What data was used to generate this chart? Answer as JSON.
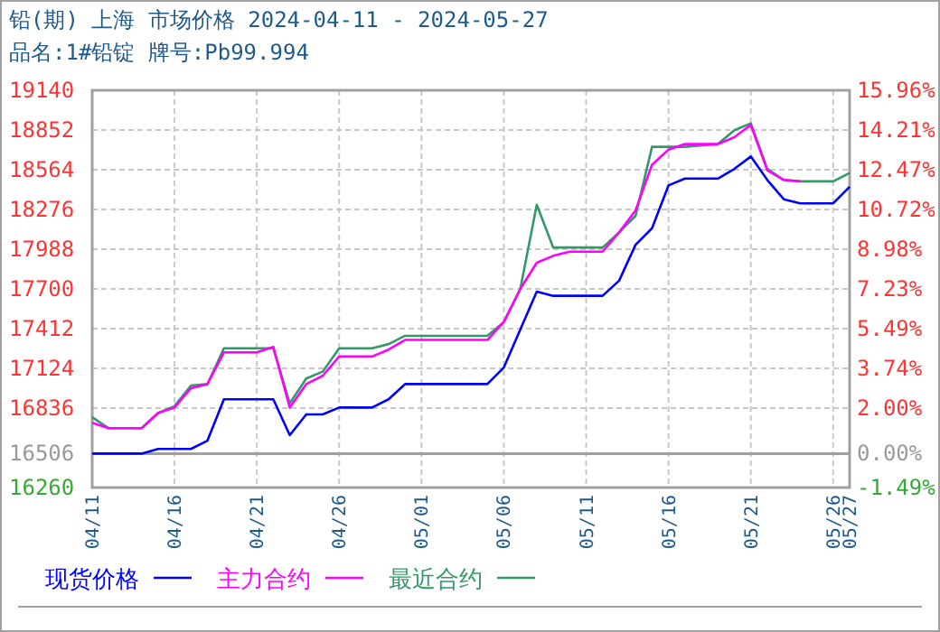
{
  "chart_data": {
    "type": "line",
    "title": "铅(期) 上海 市场价格 2024-04-11 - 2024-05-27",
    "subtitle": "品名:1#铅锭 牌号:Pb99.994",
    "xlim": [
      "2024-04-11",
      "2024-05-27"
    ],
    "xticks": [
      {
        "value": "2024-04-11",
        "label": "04/11"
      },
      {
        "value": "2024-04-16",
        "label": "04/16"
      },
      {
        "value": "2024-04-21",
        "label": "04/21"
      },
      {
        "value": "2024-04-26",
        "label": "04/26"
      },
      {
        "value": "2024-05-01",
        "label": "05/01"
      },
      {
        "value": "2024-05-06",
        "label": "05/06"
      },
      {
        "value": "2024-05-11",
        "label": "05/11"
      },
      {
        "value": "2024-05-16",
        "label": "05/16"
      },
      {
        "value": "2024-05-21",
        "label": "05/21"
      },
      {
        "value": "2024-05-26",
        "label": "05/26"
      },
      {
        "value": "2024-05-27",
        "label": "05/27"
      }
    ],
    "ylim": [
      16260,
      19140
    ],
    "yticks": [
      16260,
      16506,
      16836,
      17124,
      17412,
      17700,
      17988,
      18276,
      18564,
      18852,
      19140
    ],
    "y2lim": [
      -1.49,
      15.96
    ],
    "y2ticks": [
      {
        "value": -1.49,
        "label": "-1.49%"
      },
      {
        "value": 0,
        "label": "0.00%"
      },
      {
        "value": 2.0,
        "label": "2.00%"
      },
      {
        "value": 3.74,
        "label": "3.74%"
      },
      {
        "value": 5.49,
        "label": "5.49%"
      },
      {
        "value": 7.23,
        "label": "7.23%"
      },
      {
        "value": 8.98,
        "label": "8.98%"
      },
      {
        "value": 10.72,
        "label": "10.72%"
      },
      {
        "value": 12.47,
        "label": "12.47%"
      },
      {
        "value": 14.21,
        "label": "14.21%"
      },
      {
        "value": 15.96,
        "label": "15.96%"
      }
    ],
    "ref_lines": [
      {
        "axis": "y",
        "value": 16506,
        "color": "#a0a0a0"
      }
    ],
    "grid": true,
    "legend": "bottom",
    "line_style": "solid",
    "series": [
      {
        "name": "现货价格",
        "color": "#0000ff",
        "x": [
          "2024-04-11",
          "2024-04-14",
          "2024-04-15",
          "2024-04-17",
          "2024-04-18",
          "2024-04-19",
          "2024-04-22",
          "2024-04-23",
          "2024-04-24",
          "2024-04-25",
          "2024-04-26",
          "2024-04-28",
          "2024-04-29",
          "2024-04-30",
          "2024-05-05",
          "2024-05-06",
          "2024-05-08",
          "2024-05-09",
          "2024-05-12",
          "2024-05-13",
          "2024-05-14",
          "2024-05-15",
          "2024-05-16",
          "2024-05-17",
          "2024-05-19",
          "2024-05-20",
          "2024-05-21",
          "2024-05-22",
          "2024-05-23",
          "2024-05-24",
          "2024-05-26",
          "2024-05-27"
        ],
        "values": [
          16506,
          16506,
          16540,
          16540,
          16600,
          16900,
          16900,
          16640,
          16790,
          16790,
          16840,
          16840,
          16900,
          17010,
          17010,
          17130,
          17680,
          17650,
          17650,
          17760,
          18020,
          18140,
          18450,
          18500,
          18500,
          18570,
          18660,
          18490,
          18350,
          18320,
          18320,
          18440
        ]
      },
      {
        "name": "主力合约",
        "color": "#ff00ff",
        "x": [
          "2024-04-11",
          "2024-04-12",
          "2024-04-14",
          "2024-04-15",
          "2024-04-16",
          "2024-04-17",
          "2024-04-18",
          "2024-04-19",
          "2024-04-21",
          "2024-04-22",
          "2024-04-23",
          "2024-04-24",
          "2024-04-25",
          "2024-04-26",
          "2024-04-28",
          "2024-04-29",
          "2024-04-30",
          "2024-05-05",
          "2024-05-06",
          "2024-05-07",
          "2024-05-08",
          "2024-05-09",
          "2024-05-10",
          "2024-05-12",
          "2024-05-13",
          "2024-05-14",
          "2024-05-15",
          "2024-05-16",
          "2024-05-17",
          "2024-05-19",
          "2024-05-20",
          "2024-05-21",
          "2024-05-22",
          "2024-05-23",
          "2024-05-24"
        ],
        "values": [
          16730,
          16690,
          16690,
          16800,
          16840,
          16980,
          17010,
          17240,
          17240,
          17280,
          16840,
          17010,
          17070,
          17210,
          17210,
          17260,
          17330,
          17330,
          17460,
          17700,
          17890,
          17940,
          17970,
          17970,
          18110,
          18270,
          18600,
          18710,
          18750,
          18750,
          18800,
          18890,
          18560,
          18490,
          18480
        ]
      },
      {
        "name": "最近合约",
        "color": "#339966",
        "x": [
          "2024-04-11",
          "2024-04-12",
          "2024-04-14",
          "2024-04-15",
          "2024-04-16",
          "2024-04-17",
          "2024-04-18",
          "2024-04-19",
          "2024-04-22",
          "2024-04-23",
          "2024-04-24",
          "2024-04-25",
          "2024-04-26",
          "2024-04-28",
          "2024-04-29",
          "2024-04-30",
          "2024-05-05",
          "2024-05-06",
          "2024-05-07",
          "2024-05-08",
          "2024-05-09",
          "2024-05-12",
          "2024-05-13",
          "2024-05-14",
          "2024-05-15",
          "2024-05-17",
          "2024-05-19",
          "2024-05-20",
          "2024-05-21",
          "2024-05-22",
          "2024-05-23",
          "2024-05-24",
          "2024-05-26",
          "2024-05-27"
        ],
        "values": [
          16770,
          16690,
          16690,
          16800,
          16850,
          17000,
          17010,
          17270,
          17270,
          16870,
          17050,
          17100,
          17270,
          17270,
          17300,
          17360,
          17360,
          17460,
          17700,
          18310,
          18000,
          18000,
          18110,
          18230,
          18730,
          18730,
          18750,
          18850,
          18900,
          18570,
          18490,
          18480,
          18480,
          18540
        ]
      }
    ]
  }
}
